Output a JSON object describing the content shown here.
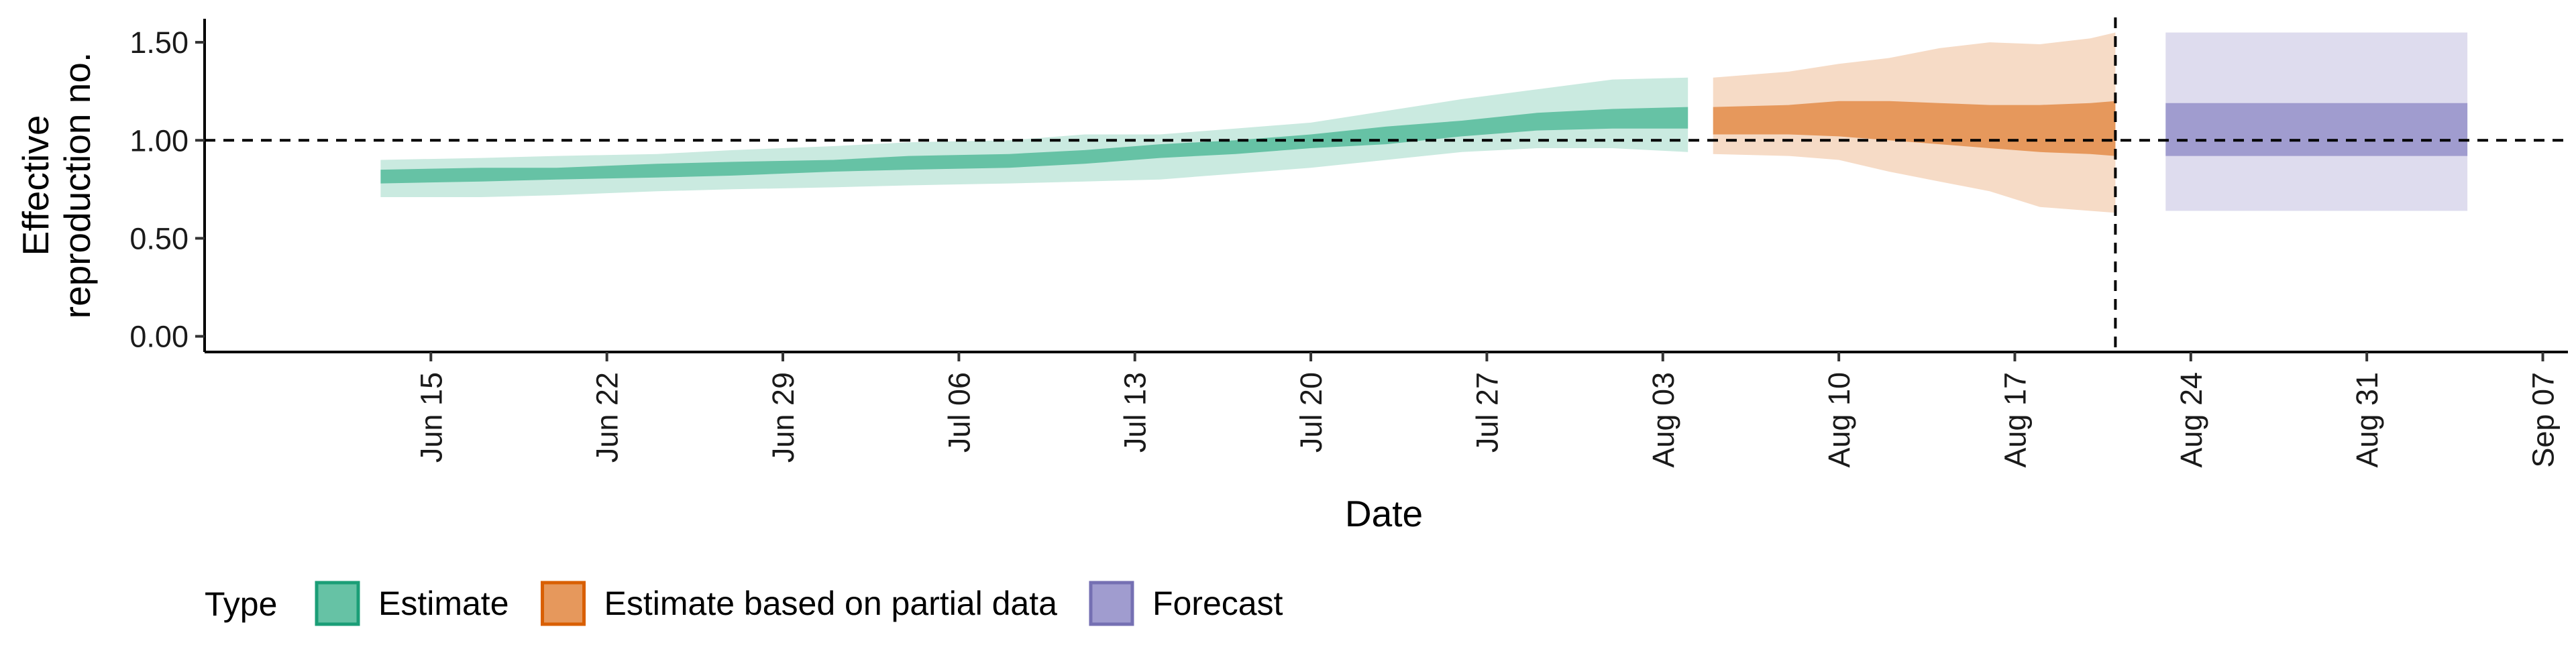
{
  "chart_data": {
    "type": "area",
    "title": "",
    "xlabel": "Date",
    "ylabel_lines": [
      "Effective",
      "reproduction no."
    ],
    "x_tick_labels": [
      "Jun 15",
      "Jun 22",
      "Jun 29",
      "Jul 06",
      "Jul 13",
      "Jul 20",
      "Jul 27",
      "Aug 03",
      "Aug 10",
      "Aug 17",
      "Aug 24",
      "Aug 31",
      "Sep 07"
    ],
    "x_tick_dates": [
      "2020-06-15",
      "2020-06-22",
      "2020-06-29",
      "2020-07-06",
      "2020-07-13",
      "2020-07-20",
      "2020-07-27",
      "2020-08-03",
      "2020-08-10",
      "2020-08-17",
      "2020-08-24",
      "2020-08-31",
      "2020-09-07"
    ],
    "xlim": [
      "2020-06-06",
      "2020-09-08"
    ],
    "y_ticks": [
      0.0,
      0.5,
      1.0,
      1.5
    ],
    "y_tick_labels": [
      "0.00",
      "0.50",
      "1.00",
      "1.50"
    ],
    "ylim": [
      -0.08,
      1.62
    ],
    "reference_line_y": 1.0,
    "forecast_start_date": "2020-08-21",
    "grid": false,
    "legend_placement": "bottom",
    "legend": {
      "title": "Type",
      "items": [
        "Estimate",
        "Estimate based on partial data",
        "Forecast"
      ]
    },
    "series": [
      {
        "name": "Estimate",
        "fill_color": "#66c2a5",
        "border_color": "#1b9e77",
        "x": [
          "2020-06-13",
          "2020-06-17",
          "2020-06-20",
          "2020-06-24",
          "2020-06-27",
          "2020-07-01",
          "2020-07-04",
          "2020-07-08",
          "2020-07-11",
          "2020-07-14",
          "2020-07-17",
          "2020-07-20",
          "2020-07-23",
          "2020-07-26",
          "2020-07-29",
          "2020-08-01",
          "2020-08-04"
        ],
        "median_low": [
          0.78,
          0.79,
          0.8,
          0.81,
          0.82,
          0.84,
          0.85,
          0.86,
          0.88,
          0.91,
          0.93,
          0.96,
          0.98,
          1.02,
          1.05,
          1.06,
          1.06
        ],
        "median_high": [
          0.85,
          0.86,
          0.86,
          0.88,
          0.89,
          0.9,
          0.92,
          0.93,
          0.95,
          0.98,
          1.0,
          1.03,
          1.07,
          1.1,
          1.14,
          1.16,
          1.17
        ],
        "ci_low": [
          0.71,
          0.71,
          0.72,
          0.74,
          0.75,
          0.76,
          0.77,
          0.78,
          0.79,
          0.8,
          0.83,
          0.86,
          0.9,
          0.94,
          0.96,
          0.96,
          0.94
        ],
        "ci_high": [
          0.9,
          0.91,
          0.92,
          0.93,
          0.95,
          0.97,
          0.99,
          1.0,
          1.03,
          1.03,
          1.06,
          1.09,
          1.15,
          1.21,
          1.26,
          1.31,
          1.32
        ]
      },
      {
        "name": "Estimate based on partial data",
        "fill_color": "#e6985c",
        "border_color": "#d95f02",
        "x": [
          "2020-08-05",
          "2020-08-08",
          "2020-08-10",
          "2020-08-12",
          "2020-08-14",
          "2020-08-16",
          "2020-08-18",
          "2020-08-20",
          "2020-08-21"
        ],
        "median_low": [
          1.03,
          1.03,
          1.02,
          1.0,
          0.98,
          0.96,
          0.94,
          0.93,
          0.92
        ],
        "median_high": [
          1.17,
          1.18,
          1.2,
          1.2,
          1.19,
          1.18,
          1.18,
          1.19,
          1.2
        ],
        "ci_low": [
          0.93,
          0.92,
          0.9,
          0.84,
          0.79,
          0.74,
          0.66,
          0.64,
          0.63
        ],
        "ci_high": [
          1.32,
          1.35,
          1.39,
          1.42,
          1.47,
          1.5,
          1.49,
          1.52,
          1.55
        ]
      },
      {
        "name": "Forecast",
        "fill_color": "#a09ccf",
        "border_color": "#7570b3",
        "x": [
          "2020-08-23",
          "2020-09-04"
        ],
        "median_low": [
          0.92,
          0.92
        ],
        "median_high": [
          1.19,
          1.19
        ],
        "ci_low": [
          0.64,
          0.64
        ],
        "ci_high": [
          1.55,
          1.55
        ]
      }
    ]
  }
}
